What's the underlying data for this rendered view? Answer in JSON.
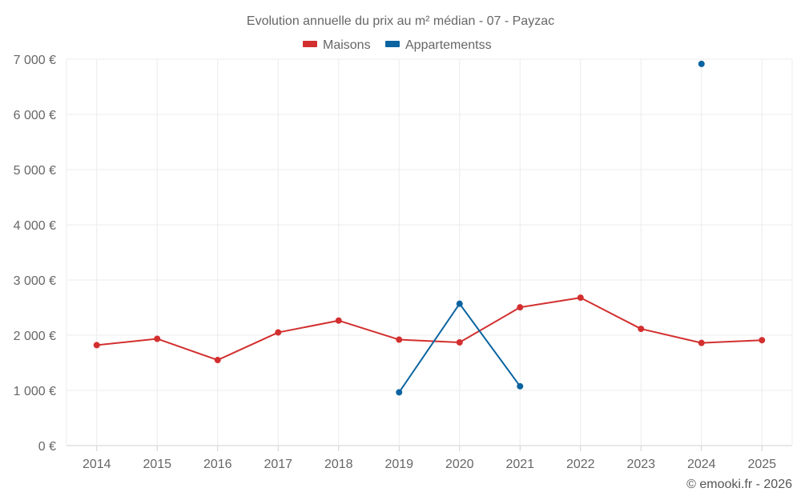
{
  "chart_data": {
    "type": "line",
    "title": "Evolution annuelle du prix au m² médian - 07 - Payzac",
    "categories": [
      "2014",
      "2015",
      "2016",
      "2017",
      "2018",
      "2019",
      "2020",
      "2021",
      "2022",
      "2023",
      "2024",
      "2025"
    ],
    "series": [
      {
        "name": "Maisons",
        "color": "#d32f2f",
        "values": [
          1820,
          1935,
          1550,
          2050,
          2265,
          1920,
          1870,
          2505,
          2680,
          2115,
          1860,
          1910
        ]
      },
      {
        "name": "Appartementss",
        "color": "#0b64a0",
        "values": [
          null,
          null,
          null,
          null,
          null,
          965,
          2570,
          1075,
          null,
          null,
          6915,
          null
        ]
      }
    ],
    "ylim": [
      0,
      7000
    ],
    "yticks": [
      0,
      1000,
      2000,
      3000,
      4000,
      5000,
      6000,
      7000
    ],
    "ytick_labels": [
      "0 €",
      "1 000 €",
      "2 000 €",
      "3 000 €",
      "4 000 €",
      "5 000 €",
      "6 000 €",
      "7 000 €"
    ],
    "legend_position": "top-center",
    "grid": true
  },
  "credit": "© emooki.fr - 2026"
}
